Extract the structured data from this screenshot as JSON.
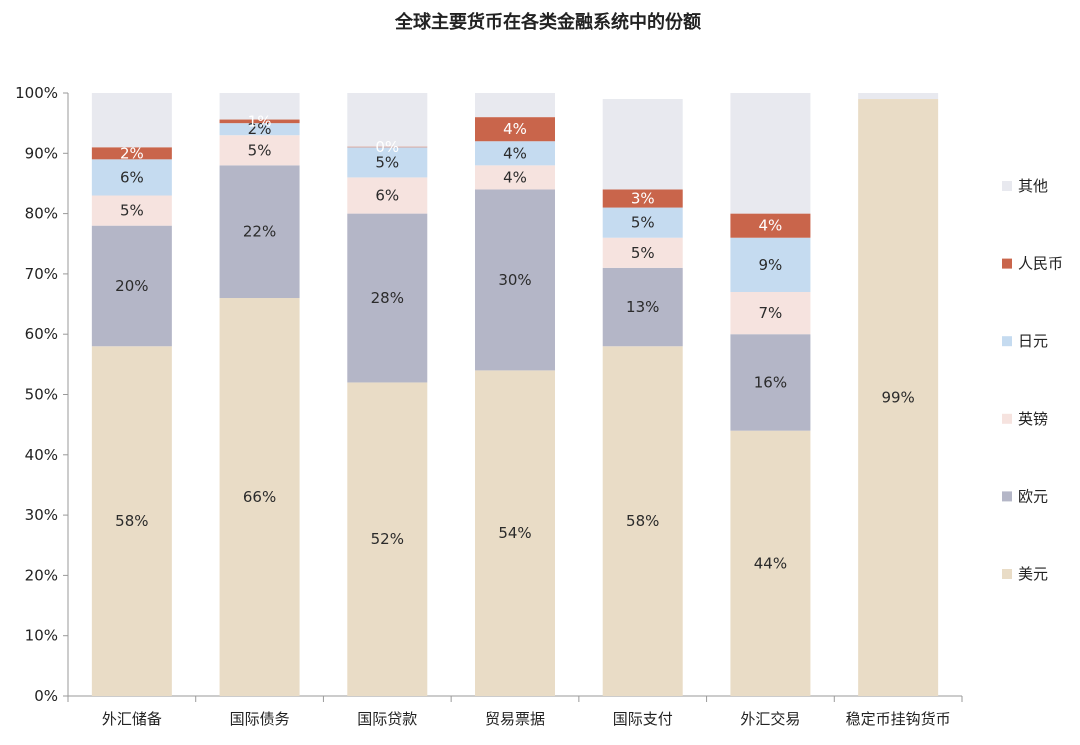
{
  "chart_data": {
    "type": "bar",
    "stacked": true,
    "title": "全球主要货币在各类金融系统中的份额",
    "xlabel": "",
    "ylabel": "",
    "ylim": [
      0,
      100
    ],
    "yticks": [
      "0%",
      "10%",
      "20%",
      "30%",
      "40%",
      "50%",
      "60%",
      "70%",
      "80%",
      "90%",
      "100%"
    ],
    "legend_position": "right",
    "categories": [
      "外汇储备",
      "国际债务",
      "国际贷款",
      "贸易票据",
      "国际支付",
      "外汇交易",
      "稳定币挂钩货币"
    ],
    "series": [
      {
        "name": "美元",
        "color": "#e9dcc6",
        "values": [
          58,
          66,
          52,
          54,
          58,
          44,
          99
        ],
        "labels": [
          "58%",
          "66%",
          "52%",
          "54%",
          "58%",
          "44%",
          "99%"
        ]
      },
      {
        "name": "欧元",
        "color": "#b4b6c7",
        "values": [
          20,
          22,
          28,
          30,
          13,
          16,
          0
        ],
        "labels": [
          "20%",
          "22%",
          "28%",
          "30%",
          "13%",
          "16%",
          ""
        ]
      },
      {
        "name": "英镑",
        "color": "#f6e3df",
        "values": [
          5,
          5,
          6,
          4,
          5,
          7,
          0
        ],
        "labels": [
          "5%",
          "5%",
          "6%",
          "4%",
          "5%",
          "7%",
          ""
        ]
      },
      {
        "name": "日元",
        "color": "#c5dbf0",
        "values": [
          6,
          2,
          5,
          4,
          5,
          9,
          0
        ],
        "labels": [
          "6%",
          "2%",
          "5%",
          "4%",
          "5%",
          "9%",
          ""
        ]
      },
      {
        "name": "人民币",
        "color": "#c9654b",
        "values": [
          2,
          0.6,
          0.1,
          4,
          3,
          4,
          0
        ],
        "labels": [
          "2%",
          "1%",
          "0%",
          "4%",
          "3%",
          "4%",
          ""
        ]
      },
      {
        "name": "其他",
        "color": "#e8e9ef",
        "values": [
          9,
          5.4,
          10,
          4,
          15,
          22,
          1
        ],
        "labels": [
          "",
          "",
          "",
          "",
          "",
          "",
          ""
        ]
      }
    ]
  }
}
